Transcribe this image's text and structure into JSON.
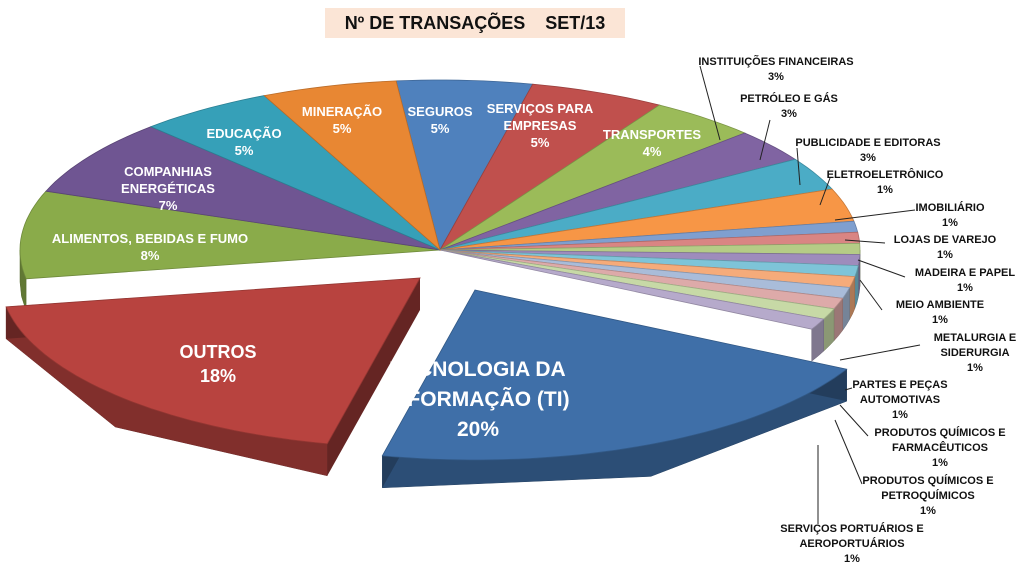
{
  "chart_data": {
    "type": "pie",
    "style": "3d-exploded",
    "title": "Nº DE TRANSAÇÕES",
    "subtitle": "SET/13",
    "slices": [
      {
        "label": "SEGUROS",
        "value": 5,
        "pct": "5%",
        "color": "#4f81bd"
      },
      {
        "label": "SERVIÇOS PARA EMPRESAS",
        "value": 5,
        "pct": "5%",
        "color": "#c0504d"
      },
      {
        "label": "TRANSPORTES",
        "value": 4,
        "pct": "4%",
        "color": "#9bbb59"
      },
      {
        "label": "INSTITUIÇÕES FINANCEIRAS",
        "value": 3,
        "pct": "3%",
        "color": "#8064a2"
      },
      {
        "label": "PETRÓLEO E GÁS",
        "value": 3,
        "pct": "3%",
        "color": "#4bacc6"
      },
      {
        "label": "PUBLICIDADE E EDITORAS",
        "value": 3,
        "pct": "3%",
        "color": "#f79646"
      },
      {
        "label": "ELETROELETRÔNICO",
        "value": 1,
        "pct": "1%",
        "color": "#7f9fcf"
      },
      {
        "label": "IMOBILIÁRIO",
        "value": 1,
        "pct": "1%",
        "color": "#d98583"
      },
      {
        "label": "LOJAS DE VAREJO",
        "value": 1,
        "pct": "1%",
        "color": "#b5cc86"
      },
      {
        "label": "MADEIRA E PAPEL",
        "value": 1,
        "pct": "1%",
        "color": "#9e8cbc"
      },
      {
        "label": "MEIO AMBIENTE",
        "value": 1,
        "pct": "1%",
        "color": "#7ec4d8"
      },
      {
        "label": "METALURGIA E SIDERURGIA",
        "value": 1,
        "pct": "1%",
        "color": "#f5ab7a"
      },
      {
        "label": "PARTES E PEÇAS AUTOMOTIVAS",
        "value": 1,
        "pct": "1%",
        "color": "#a9bcd9"
      },
      {
        "label": "PRODUTOS QUÍMICOS E FARMACÊUTICOS",
        "value": 1,
        "pct": "1%",
        "color": "#ddaaa9"
      },
      {
        "label": "PRODUTOS QUÍMICOS E PETROQUÍMICOS",
        "value": 1,
        "pct": "1%",
        "color": "#c7d9a6"
      },
      {
        "label": "SERVIÇOS PORTUÁRIOS E AEROPORTUÁRIOS",
        "value": 1,
        "pct": "1%",
        "color": "#b6aacb"
      },
      {
        "label": "TECNOLOGIA DA INFORMAÇÃO (TI)",
        "value": 20,
        "pct": "20%",
        "color": "#3f6fa8"
      },
      {
        "label": "OUTROS",
        "value": 18,
        "pct": "18%",
        "color": "#b8433f"
      },
      {
        "label": "ALIMENTOS, BEBIDAS E FUMO",
        "value": 8,
        "pct": "8%",
        "color": "#8aab4a"
      },
      {
        "label": "COMPANHIAS ENERGÉTICAS",
        "value": 7,
        "pct": "7%",
        "color": "#6f5592"
      },
      {
        "label": "EDUCAÇÃO",
        "value": 5,
        "pct": "5%",
        "color": "#36a0b8"
      },
      {
        "label": "MINERAÇÃO",
        "value": 5,
        "pct": "5%",
        "color": "#e88733"
      }
    ]
  }
}
